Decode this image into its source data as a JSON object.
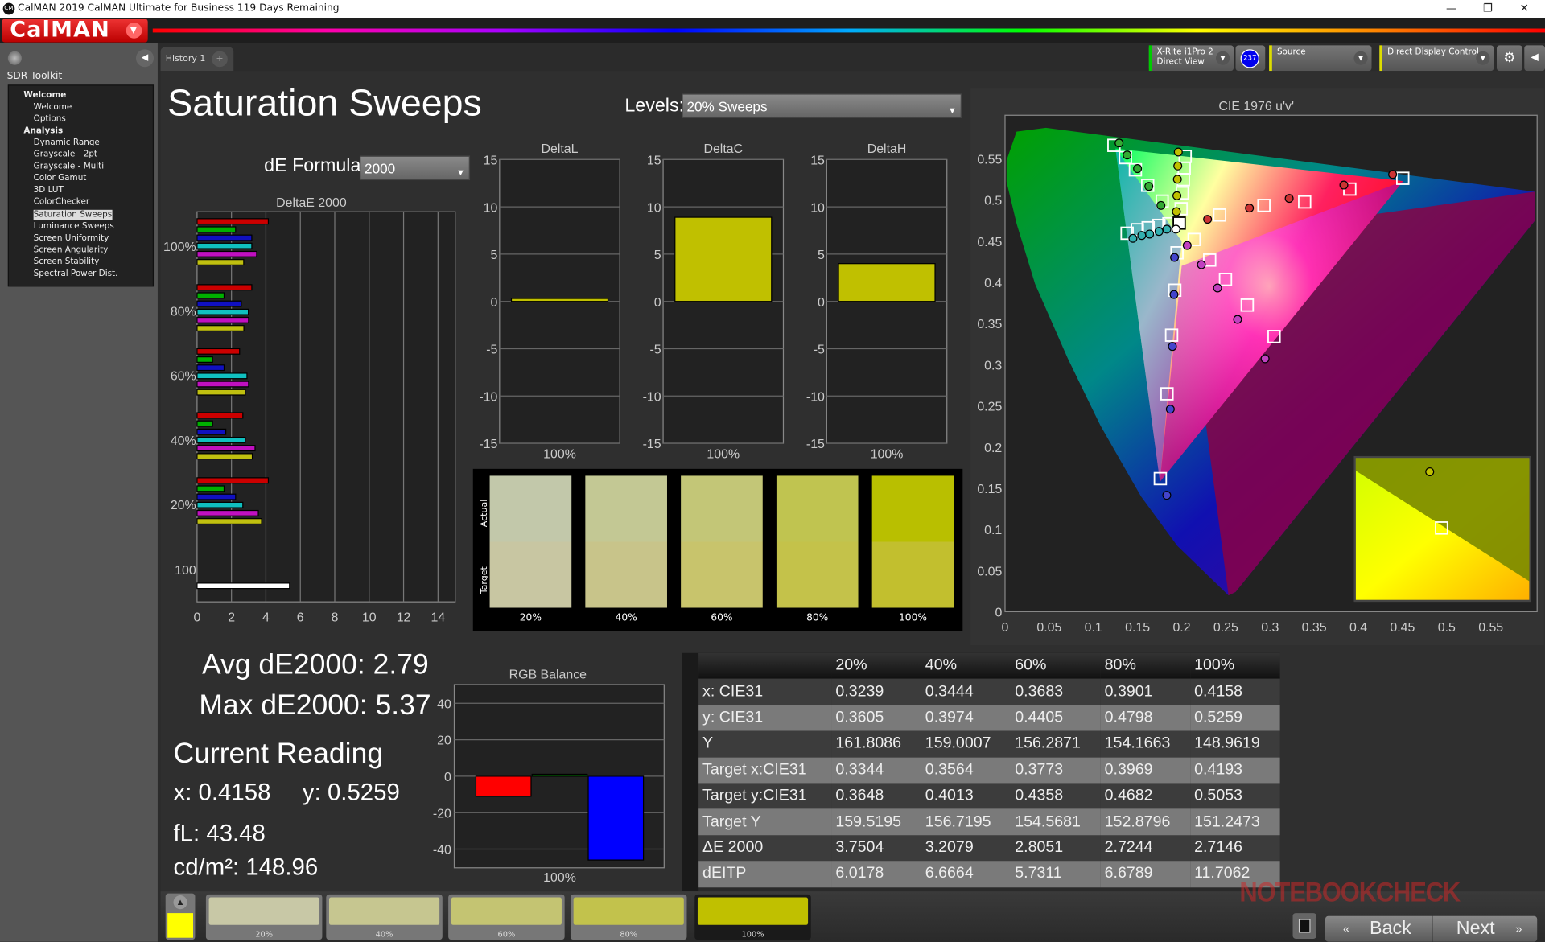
{
  "window": {
    "title": "CalMAN 2019 CalMAN Ultimate for Business 119 Days Remaining",
    "app_icon": "CM",
    "controls": [
      "—",
      "❐",
      "✕"
    ]
  },
  "logo": {
    "text": "CalMAN"
  },
  "sidebar": {
    "title": "SDR Toolkit",
    "items": [
      {
        "label": "Welcome",
        "level": 0
      },
      {
        "label": "Welcome",
        "level": 1
      },
      {
        "label": "Options",
        "level": 1
      },
      {
        "label": "Analysis",
        "level": 0
      },
      {
        "label": "Dynamic Range",
        "level": 1
      },
      {
        "label": "Grayscale - 2pt",
        "level": 1
      },
      {
        "label": "Grayscale - Multi",
        "level": 1
      },
      {
        "label": "Color Gamut",
        "level": 1
      },
      {
        "label": "3D LUT",
        "level": 1
      },
      {
        "label": "ColorChecker",
        "level": 1
      },
      {
        "label": "Saturation Sweeps",
        "level": 1,
        "selected": true
      },
      {
        "label": "Luminance Sweeps",
        "level": 1
      },
      {
        "label": "Screen Uniformity",
        "level": 1
      },
      {
        "label": "Screen Angularity",
        "level": 1
      },
      {
        "label": "Screen Stability",
        "level": 1
      },
      {
        "label": "Spectral Power Dist.",
        "level": 1
      }
    ]
  },
  "tabs": [
    {
      "label": "History 1"
    },
    {
      "label": "+"
    }
  ],
  "devices": {
    "meter_line1": "X-Rite i1Pro 2",
    "meter_line2": "Direct View",
    "meter_badge": "237",
    "source": "Source",
    "display": "Direct Display Control",
    "meter_color": "#00cc00",
    "source_color": "#e0e000",
    "badge_color": "#0000ee"
  },
  "page": {
    "title": "Saturation Sweeps",
    "levels_label": "Levels:",
    "levels_value": "20% Sweeps",
    "formula_label": "dE Formula:",
    "formula_value": "2000"
  },
  "summary": {
    "avg": "Avg dE2000: 2.79",
    "max": "Max dE2000: 5.37",
    "current_title": "Current Reading",
    "x": "x: 0.4158",
    "y": "y: 0.5259",
    "fl": "fL: 43.48",
    "cdm2": "cd/m²: 148.96"
  },
  "swatch_panel": {
    "actual_label": "Actual",
    "target_label": "Target",
    "items": [
      {
        "label": "20%",
        "actual": "#c2c8aa",
        "target": "#c8c6a2"
      },
      {
        "label": "40%",
        "actual": "#c3c894",
        "target": "#c8c48a"
      },
      {
        "label": "60%",
        "actual": "#c3c677",
        "target": "#c8c46c"
      },
      {
        "label": "80%",
        "actual": "#c0c450",
        "target": "#c4c24a"
      },
      {
        "label": "100%",
        "actual": "#b9bf00",
        "target": "#c2bf2e"
      }
    ]
  },
  "bottom_strip": {
    "current_color": "#ffff00",
    "items": [
      {
        "label": "20%",
        "color": "#c8c8a6"
      },
      {
        "label": "40%",
        "color": "#c6c690"
      },
      {
        "label": "60%",
        "color": "#c4c472"
      },
      {
        "label": "80%",
        "color": "#c2c24c"
      },
      {
        "label": "100%",
        "color": "#c0c000",
        "active": true
      }
    ],
    "back": "Back",
    "next": "Next"
  },
  "table": {
    "columns": [
      "",
      "20%",
      "40%",
      "60%",
      "80%",
      "100%"
    ],
    "rows": [
      [
        "x: CIE31",
        "0.3239",
        "0.3444",
        "0.3683",
        "0.3901",
        "0.4158"
      ],
      [
        "y: CIE31",
        "0.3605",
        "0.3974",
        "0.4405",
        "0.4798",
        "0.5259"
      ],
      [
        "Y",
        "161.8086",
        "159.0007",
        "156.2871",
        "154.1663",
        "148.9619"
      ],
      [
        "Target x:CIE31",
        "0.3344",
        "0.3564",
        "0.3773",
        "0.3969",
        "0.4193"
      ],
      [
        "Target y:CIE31",
        "0.3648",
        "0.4013",
        "0.4358",
        "0.4682",
        "0.5053"
      ],
      [
        "Target Y",
        "159.5195",
        "156.7195",
        "154.5681",
        "152.8796",
        "151.2473"
      ],
      [
        "ΔE 2000",
        "3.7504",
        "3.2079",
        "2.8051",
        "2.7244",
        "2.7146"
      ],
      [
        "dEITP",
        "6.0178",
        "6.6664",
        "5.7311",
        "6.6789",
        "11.7062"
      ]
    ]
  },
  "watermark": "NOTEBOOKCHECK",
  "chart_data": [
    {
      "id": "deltaE",
      "type": "bar",
      "orientation": "horizontal",
      "title": "DeltaE 2000",
      "xlim": [
        0,
        15
      ],
      "xticks": [
        0,
        2,
        4,
        6,
        8,
        10,
        12,
        14
      ],
      "grid": true,
      "categories": [
        "100%",
        "80%",
        "60%",
        "40%",
        "20%"
      ],
      "series": [
        {
          "color": "#cc0000",
          "values": [
            4.14,
            3.18,
            2.47,
            2.66,
            4.14
          ]
        },
        {
          "color": "#00b000",
          "values": [
            2.24,
            1.57,
            0.9,
            0.9,
            1.57
          ]
        },
        {
          "color": "#1010c0",
          "values": [
            3.18,
            2.57,
            1.57,
            1.67,
            2.24
          ]
        },
        {
          "color": "#10c0c0",
          "values": [
            3.18,
            2.98,
            2.9,
            2.8,
            2.66
          ]
        },
        {
          "color": "#c010c0",
          "values": [
            3.46,
            2.99,
            2.99,
            3.37,
            3.56
          ]
        },
        {
          "color": "#c0c010",
          "values": [
            2.71,
            2.72,
            2.8,
            3.21,
            3.75
          ]
        }
      ],
      "extra": {
        "category": "100",
        "color": "#ffffff",
        "value": 5.37
      }
    },
    {
      "id": "deltaL",
      "type": "bar",
      "title": "DeltaL",
      "categories": [
        "100%"
      ],
      "values": [
        0.3
      ],
      "ylim": [
        -15,
        15
      ],
      "yticks": [
        15,
        10,
        5,
        0,
        -5,
        -10,
        -15
      ],
      "color": "#c0c000"
    },
    {
      "id": "deltaC",
      "type": "bar",
      "title": "DeltaC",
      "categories": [
        "100%"
      ],
      "values": [
        8.9
      ],
      "ylim": [
        -15,
        15
      ],
      "yticks": [
        15,
        10,
        5,
        0,
        -5,
        -10,
        -15
      ],
      "color": "#c0c000"
    },
    {
      "id": "deltaH",
      "type": "bar",
      "title": "DeltaH",
      "categories": [
        "100%"
      ],
      "values": [
        4.0
      ],
      "ylim": [
        -15,
        15
      ],
      "yticks": [
        15,
        10,
        5,
        0,
        -5,
        -10,
        -15
      ],
      "color": "#c0c000"
    },
    {
      "id": "rgb",
      "type": "bar",
      "title": "RGB Balance",
      "categories": [
        "100%"
      ],
      "ylim": [
        -50,
        50
      ],
      "yticks": [
        40,
        20,
        0,
        -20,
        -40
      ],
      "series": [
        {
          "color": "#ff0000",
          "values": [
            -11
          ]
        },
        {
          "color": "#00cc00",
          "values": [
            1
          ]
        },
        {
          "color": "#0000ff",
          "values": [
            -46
          ]
        }
      ]
    },
    {
      "id": "cie",
      "type": "scatter",
      "title": "CIE 1976 u'v'",
      "xlim": [
        0,
        0.6
      ],
      "ylim": [
        0,
        0.6
      ],
      "xticks": [
        0,
        0.05,
        0.1,
        0.15,
        0.2,
        0.25,
        0.3,
        0.35,
        0.4,
        0.45,
        0.5,
        0.55
      ],
      "yticks": [
        0,
        0.05,
        0.1,
        0.15,
        0.2,
        0.25,
        0.3,
        0.35,
        0.4,
        0.45,
        0.5,
        0.55
      ],
      "locus": [
        [
          0.0463,
          0.5876
        ],
        [
          0.013,
          0.583
        ],
        [
          0.0017,
          0.548
        ],
        [
          0.0017,
          0.522
        ],
        [
          0.0132,
          0.4708
        ],
        [
          0.034,
          0.398
        ],
        [
          0.071,
          0.3076
        ],
        [
          0.108,
          0.226
        ],
        [
          0.154,
          0.14
        ],
        [
          0.195,
          0.08
        ],
        [
          0.253,
          0.0198
        ],
        [
          0.261,
          0.024
        ],
        [
          0.6,
          0.475
        ],
        [
          0.6,
          0.51
        ]
      ],
      "gamut": [
        [
          0.4507,
          0.5229
        ],
        [
          0.125,
          0.5625
        ],
        [
          0.1754,
          0.1579
        ]
      ],
      "white": {
        "target": [
          0.1972,
          0.4719
        ],
        "measured": [
          0.1935,
          0.4645
        ]
      },
      "series": [
        {
          "color": "#cc3333",
          "measured": [
            [
              0.2293,
              0.4765
            ],
            [
              0.2767,
              0.4902
            ],
            [
              0.3217,
              0.5019
            ],
            [
              0.3836,
              0.5181
            ],
            [
              0.4388,
              0.5311
            ]
          ],
          "target": [
            [
              0.243,
              0.4817
            ],
            [
              0.2931,
              0.4934
            ],
            [
              0.3392,
              0.4976
            ],
            [
              0.3903,
              0.5132
            ],
            [
              0.4503,
              0.5263
            ]
          ]
        },
        {
          "color": "#33aa33",
          "measured": [
            [
              0.1765,
              0.4934
            ],
            [
              0.1628,
              0.5165
            ],
            [
              0.15,
              0.5381
            ],
            [
              0.1382,
              0.5546
            ],
            [
              0.1291,
              0.5692
            ]
          ],
          "target": [
            [
              0.1779,
              0.4986
            ],
            [
              0.1615,
              0.5178
            ],
            [
              0.1476,
              0.5366
            ],
            [
              0.1363,
              0.5514
            ],
            [
              0.1233,
              0.5663
            ]
          ]
        },
        {
          "color": "#4444cc",
          "measured": [
            [
              0.1919,
              0.4302
            ],
            [
              0.1913,
              0.3852
            ],
            [
              0.1895,
              0.3221
            ],
            [
              0.1871,
              0.2459
            ],
            [
              0.1831,
              0.1414
            ]
          ],
          "target": [
            [
              0.1947,
              0.4358
            ],
            [
              0.1922,
              0.3904
            ],
            [
              0.1886,
              0.3358
            ],
            [
              0.1834,
              0.2646
            ],
            [
              0.1758,
              0.1616
            ]
          ]
        },
        {
          "color": "#33b0b0",
          "measured": [
            [
              0.1832,
              0.4645
            ],
            [
              0.1743,
              0.4618
            ],
            [
              0.1637,
              0.4586
            ],
            [
              0.1548,
              0.4569
            ],
            [
              0.1448,
              0.4534
            ]
          ],
          "target": [
            [
              0.1855,
              0.4711
            ],
            [
              0.1743,
              0.4691
            ],
            [
              0.162,
              0.4662
            ],
            [
              0.1498,
              0.4639
            ],
            [
              0.1382,
              0.4596
            ]
          ]
        },
        {
          "color": "#c040c0",
          "measured": [
            [
              0.2062,
              0.4448
            ],
            [
              0.2223,
              0.4214
            ],
            [
              0.2406,
              0.3931
            ],
            [
              0.2633,
              0.355
            ],
            [
              0.2944,
              0.3072
            ]
          ],
          "target": [
            [
              0.2141,
              0.452
            ],
            [
              0.2317,
              0.427
            ],
            [
              0.2496,
              0.4036
            ],
            [
              0.2742,
              0.3723
            ],
            [
              0.3046,
              0.3342
            ]
          ]
        },
        {
          "color": "#c0c000",
          "source": "table x/y CIE31"
        }
      ]
    }
  ]
}
